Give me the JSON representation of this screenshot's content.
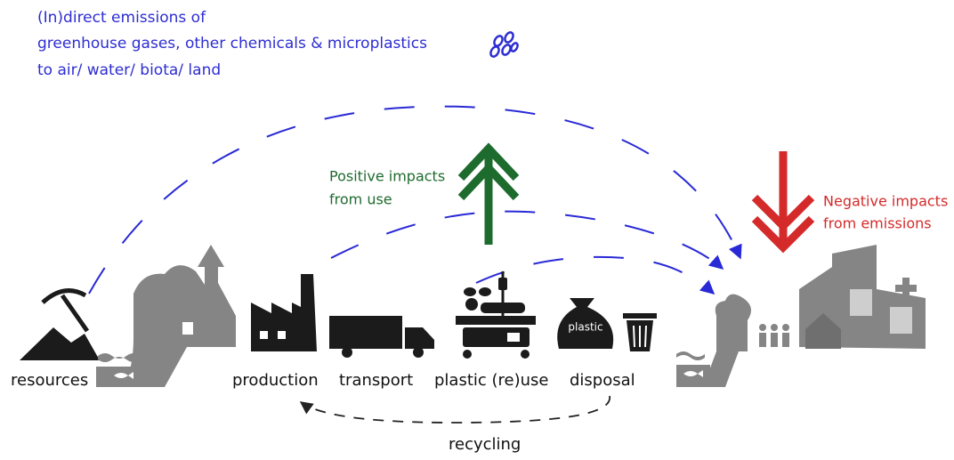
{
  "emissions": {
    "lines": [
      "(In)direct emissions of",
      "greenhouse gases, other chemicals & microplastics",
      "to air/ water/ biota/ land"
    ]
  },
  "positive_impacts": {
    "lines": [
      "Positive impacts",
      "from use"
    ]
  },
  "negative_impacts": {
    "lines": [
      "Negative impacts",
      "from emissions"
    ]
  },
  "stages": [
    "resources",
    "production",
    "transport",
    "plastic (re)use",
    "disposal"
  ],
  "bag_label": "plastic",
  "recycling": "recycling"
}
